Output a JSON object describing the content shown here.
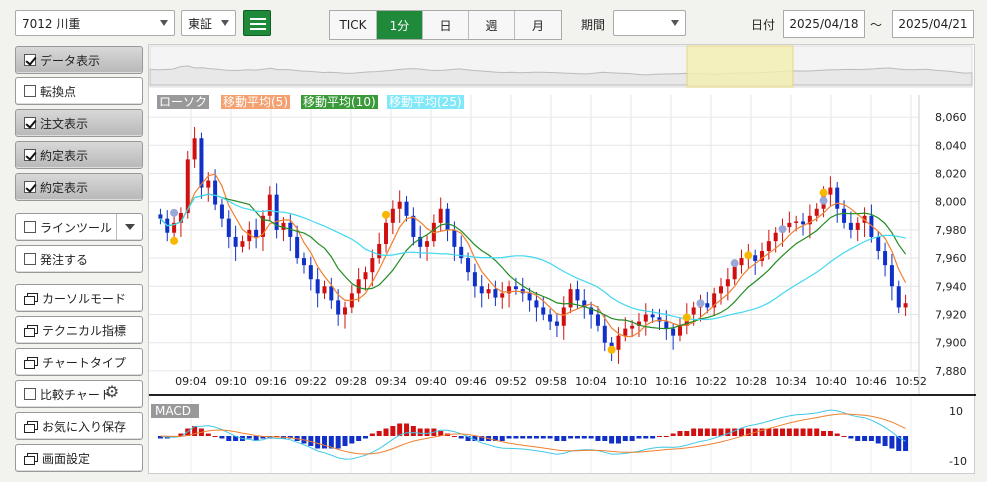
{
  "toolbar": {
    "symbol": "7012 川重",
    "market": "東証",
    "tabs": [
      "TICK",
      "1分",
      "日",
      "週",
      "月"
    ],
    "active_tab": "1分",
    "period_label": "期間",
    "period_value": "",
    "date_label": "日付",
    "date_from": "2025/04/18",
    "date_sep": "～",
    "date_to": "2025/04/21"
  },
  "sidebar": {
    "items": [
      {
        "label": "データ表示",
        "type": "check",
        "checked": true
      },
      {
        "label": "転換点",
        "type": "check",
        "checked": false
      },
      {
        "label": "注文表示",
        "type": "check",
        "checked": true
      },
      {
        "label": "約定表示",
        "type": "check",
        "checked": true
      },
      {
        "label": "約定表示",
        "type": "check",
        "checked": true
      },
      {
        "label": "ラインツール",
        "type": "check",
        "checked": false
      },
      {
        "label": "発注する",
        "type": "check",
        "checked": false
      },
      {
        "label": "カーソルモード",
        "type": "window"
      },
      {
        "label": "テクニカル指標",
        "type": "window"
      },
      {
        "label": "チャートタイプ",
        "type": "window"
      },
      {
        "label": "比較チャート",
        "type": "check",
        "checked": false
      },
      {
        "label": "お気に入り保存",
        "type": "window"
      },
      {
        "label": "画面設定",
        "type": "window"
      }
    ]
  },
  "legend": {
    "candle": "ローソク",
    "ma5": "移動平均(5)",
    "ma10": "移動平均(10)",
    "ma25": "移動平均(25)"
  },
  "macd_label": "MACD",
  "colors": {
    "up": "#d01010",
    "down": "#1030c8",
    "ma5": "#f08030",
    "ma10": "#228b22",
    "ma25": "#40d8f0",
    "accent": "#1f8a3a"
  },
  "chart_data": {
    "type": "candlestick",
    "x_ticks": [
      "09:04",
      "09:10",
      "09:16",
      "09:22",
      "09:28",
      "09:34",
      "09:40",
      "09:46",
      "09:52",
      "09:58",
      "10:04",
      "10:10",
      "10:16",
      "10:22",
      "10:28",
      "10:34",
      "10:40",
      "10:46",
      "10:52"
    ],
    "y_ticks": [
      7880,
      7900,
      7920,
      7940,
      7960,
      7980,
      8000,
      8020,
      8040,
      8060
    ],
    "ylim": [
      7870,
      8070
    ],
    "macd_ticks": [
      10,
      -10
    ],
    "macd_ylim": [
      -14,
      14
    ],
    "close": [
      7988,
      7978,
      7985,
      7992,
      8030,
      8045,
      8010,
      8015,
      7998,
      7988,
      7975,
      7968,
      7972,
      7980,
      7975,
      7990,
      8005,
      7980,
      7985,
      7975,
      7960,
      7955,
      7945,
      7935,
      7940,
      7930,
      7920,
      7925,
      7935,
      7945,
      7950,
      7960,
      7970,
      7985,
      7995,
      8000,
      7990,
      7975,
      7968,
      7972,
      7985,
      7995,
      7980,
      7968,
      7960,
      7950,
      7940,
      7935,
      7938,
      7932,
      7935,
      7940,
      7938,
      7935,
      7930,
      7925,
      7920,
      7915,
      7912,
      7925,
      7938,
      7930,
      7925,
      7920,
      7912,
      7900,
      7895,
      7905,
      7910,
      7912,
      7915,
      7920,
      7918,
      7915,
      7910,
      7905,
      7912,
      7920,
      7925,
      7928,
      7925,
      7935,
      7940,
      7945,
      7955,
      7960,
      7962,
      7958,
      7965,
      7972,
      7978,
      7982,
      7985,
      7986,
      7984,
      7990,
      7995,
      8005,
      8010,
      7995,
      7985,
      7980,
      7985,
      7990,
      7975,
      7965,
      7955,
      7940,
      7925,
      7928
    ],
    "macd_hist": [
      -1,
      -1,
      0,
      1,
      3,
      4,
      3,
      1,
      0,
      -1,
      -2,
      -2,
      -2,
      -1,
      -2,
      -1,
      -1,
      0,
      -1,
      -1,
      -2,
      -3,
      -4,
      -5,
      -5,
      -5,
      -5,
      -4,
      -3,
      -2,
      -1,
      1,
      2,
      3,
      4,
      5,
      5,
      4,
      3,
      3,
      3,
      2,
      1,
      0,
      -1,
      -2,
      -2,
      -2,
      -2,
      -2,
      -2,
      -1,
      -1,
      -1,
      -1,
      -1,
      -1,
      -1,
      -2,
      -2,
      -1,
      -1,
      -1,
      -1,
      -2,
      -2,
      -3,
      -3,
      -2,
      -2,
      -1,
      -1,
      -1,
      0,
      0,
      1,
      2,
      2,
      3,
      3,
      3,
      3,
      3,
      3,
      3,
      3,
      3,
      3,
      3,
      3,
      3,
      3,
      3,
      3,
      3,
      3,
      3,
      2,
      2,
      1,
      0,
      -1,
      -2,
      -2,
      -2,
      -3,
      -4,
      -5,
      -6,
      -6
    ]
  }
}
